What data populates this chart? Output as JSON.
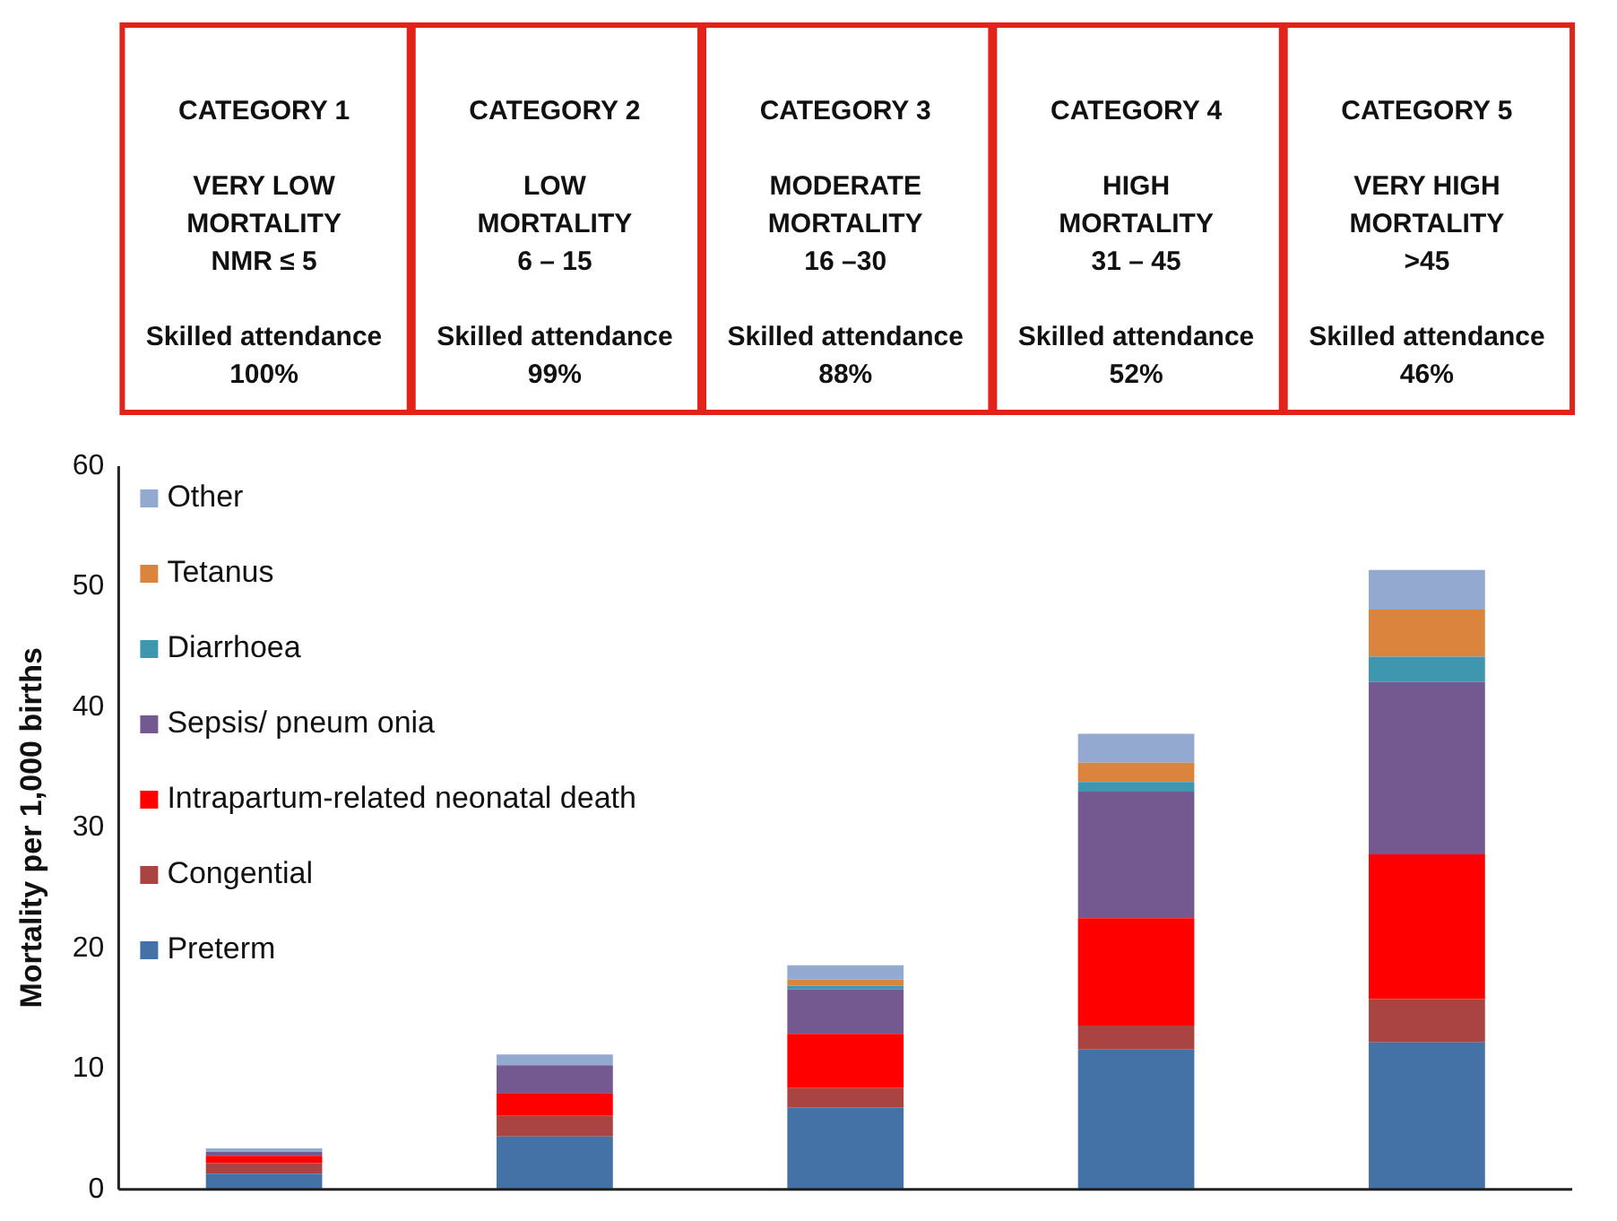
{
  "chart_data": {
    "type": "bar",
    "stacked": true,
    "ylabel": "Mortality per 1,000 births",
    "categories": [
      "CATEGORY 1\n\nVERY LOW\nMORTALITY\nNMR ≤ 5\n\nSkilled attendance\n100%",
      "CATEGORY 2\n\nLOW\nMORTALITY\n6 – 15\n\nSkilled attendance\n99%",
      "CATEGORY 3\n\nMODERATE\nMORTALITY\n16 –30\n\nSkilled attendance\n88%",
      "CATEGORY 4\n\nHIGH\nMORTALITY\n31 – 45\n\nSkilled attendance\n52%",
      "CATEGORY 5\n\nVERY HIGH\nMORTALITY\n>45\n\nSkilled attendance\n46%"
    ],
    "series": [
      {
        "name": "Preterm",
        "color": "#4471a6",
        "values": [
          1.3,
          4.4,
          6.8,
          11.6,
          12.2
        ]
      },
      {
        "name": "Congential",
        "color": "#aa4443",
        "values": [
          0.9,
          1.7,
          1.6,
          2.0,
          3.6
        ]
      },
      {
        "name": "Intrapartum-related neonatal death",
        "color": "#ff0000",
        "values": [
          0.6,
          1.9,
          4.5,
          8.9,
          12.0
        ]
      },
      {
        "name": "Sepsis/ pneum onia",
        "color": "#735990",
        "values": [
          0.3,
          2.3,
          3.7,
          10.5,
          14.3
        ]
      },
      {
        "name": "Diarrhoea",
        "color": "#3f97af",
        "values": [
          0,
          0,
          0.3,
          0.8,
          2.1
        ]
      },
      {
        "name": "Tetanus",
        "color": "#db843d",
        "values": [
          0,
          0,
          0.5,
          1.6,
          3.9
        ]
      },
      {
        "name": "Other",
        "color": "#93a9d0",
        "values": [
          0.3,
          0.9,
          1.2,
          2.4,
          3.3
        ]
      }
    ],
    "ylim": [
      0,
      60
    ],
    "yticks": [
      0,
      10,
      20,
      30,
      40,
      50,
      60
    ],
    "grid": false,
    "legend": "top left"
  }
}
